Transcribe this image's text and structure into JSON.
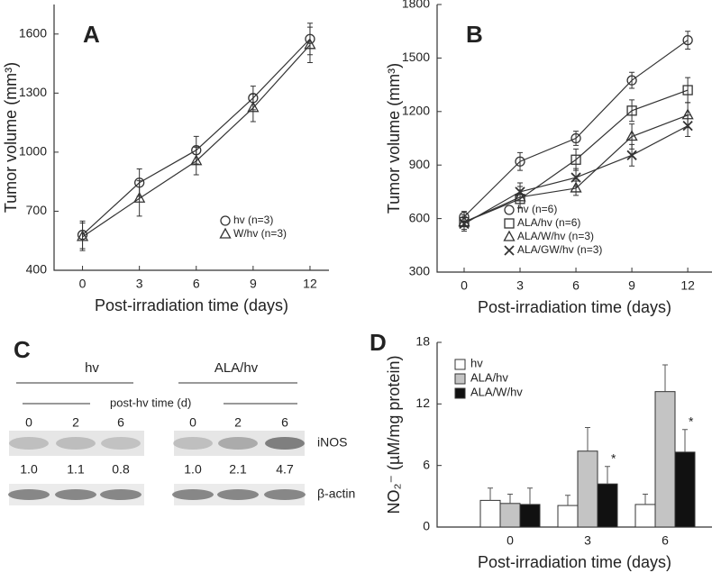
{
  "chart_data": [
    {
      "type": "line",
      "panel_label": "A",
      "xlabel": "Post-irradiation time (days)",
      "ylabel": "Tumor volume (mm³)",
      "x": [
        0,
        3,
        6,
        9,
        12
      ],
      "xlim": [
        -1.5,
        13
      ],
      "xticks": [
        0,
        3,
        6,
        9,
        12
      ],
      "ylim": [
        400,
        1750
      ],
      "yticks": [
        400,
        700,
        1000,
        1300,
        1600
      ],
      "series": [
        {
          "name": "hv (n=3)",
          "marker": "circle",
          "color": "#333333",
          "values": [
            580,
            845,
            1010,
            1275,
            1575
          ],
          "errors": [
            70,
            70,
            70,
            60,
            80
          ]
        },
        {
          "name": "W/hv (n=3)",
          "marker": "triangle",
          "color": "#333333",
          "values": [
            570,
            765,
            955,
            1225,
            1545
          ],
          "errors": [
            70,
            90,
            70,
            70,
            90
          ]
        }
      ]
    },
    {
      "type": "line",
      "panel_label": "B",
      "xlabel": "Post-irradiation time  (days)",
      "ylabel": "Tumor volume (mm³)",
      "x": [
        0,
        3,
        6,
        9,
        12
      ],
      "xlim": [
        -1.45,
        13.3
      ],
      "xticks": [
        0,
        3,
        6,
        9,
        12
      ],
      "ylim": [
        300,
        1800
      ],
      "yticks": [
        300,
        600,
        900,
        1200,
        1500,
        1800
      ],
      "series": [
        {
          "name": "hv  (n=6)",
          "marker": "circle",
          "color": "#333333",
          "values": [
            610,
            920,
            1050,
            1375,
            1600
          ],
          "errors": [
            30,
            50,
            40,
            45,
            50
          ]
        },
        {
          "name": "ALA/hv (n=6)",
          "marker": "square",
          "color": "#333333",
          "values": [
            580,
            710,
            930,
            1205,
            1320
          ],
          "errors": [
            40,
            50,
            60,
            60,
            70
          ]
        },
        {
          "name": "ALA/W/hv (n=3)",
          "marker": "triangle",
          "color": "#333333",
          "values": [
            580,
            720,
            770,
            1060,
            1180
          ],
          "errors": [
            40,
            60,
            40,
            70,
            70
          ]
        },
        {
          "name": "ALA/GW/hv (n=3)",
          "marker": "x",
          "color": "#333333",
          "values": [
            570,
            750,
            830,
            955,
            1120
          ],
          "errors": [
            40,
            50,
            50,
            60,
            60
          ]
        }
      ]
    },
    {
      "type": "bar",
      "panel_label": "D",
      "xlabel": "Post-irradiation time (days)",
      "ylabel": "NO₂⁻ (µM/mg protein)",
      "categories": [
        "0",
        "3",
        "6"
      ],
      "ylim": [
        0,
        18
      ],
      "yticks": [
        0,
        6,
        12,
        18
      ],
      "series": [
        {
          "name": "hv",
          "color": "#ffffff",
          "values": [
            2.6,
            2.1,
            2.2
          ],
          "errors": [
            1.2,
            1.0,
            1.0
          ]
        },
        {
          "name": "ALA/hv",
          "color": "#c4c4c4",
          "values": [
            2.3,
            7.4,
            13.2
          ],
          "errors": [
            0.9,
            2.3,
            2.6
          ]
        },
        {
          "name": "ALA/W/hv",
          "color": "#111111",
          "values": [
            2.2,
            4.2,
            7.3
          ],
          "errors": [
            1.6,
            1.7,
            2.2
          ]
        }
      ],
      "annotations": [
        "*",
        "*"
      ]
    }
  ],
  "blot": {
    "panel_label": "C",
    "groups": [
      "hv",
      "ALA/hv"
    ],
    "time_label": "post-hv time (d)",
    "lanes": [
      "0",
      "2",
      "6",
      "0",
      "2",
      "6"
    ],
    "rows": [
      "iNOS",
      "β-actin"
    ],
    "values": [
      1.0,
      1.1,
      0.8,
      1.0,
      2.1,
      4.7
    ],
    "value_labels": [
      "1.0",
      "1.1",
      "0.8",
      "1.0",
      "2.1",
      "4.7"
    ]
  }
}
